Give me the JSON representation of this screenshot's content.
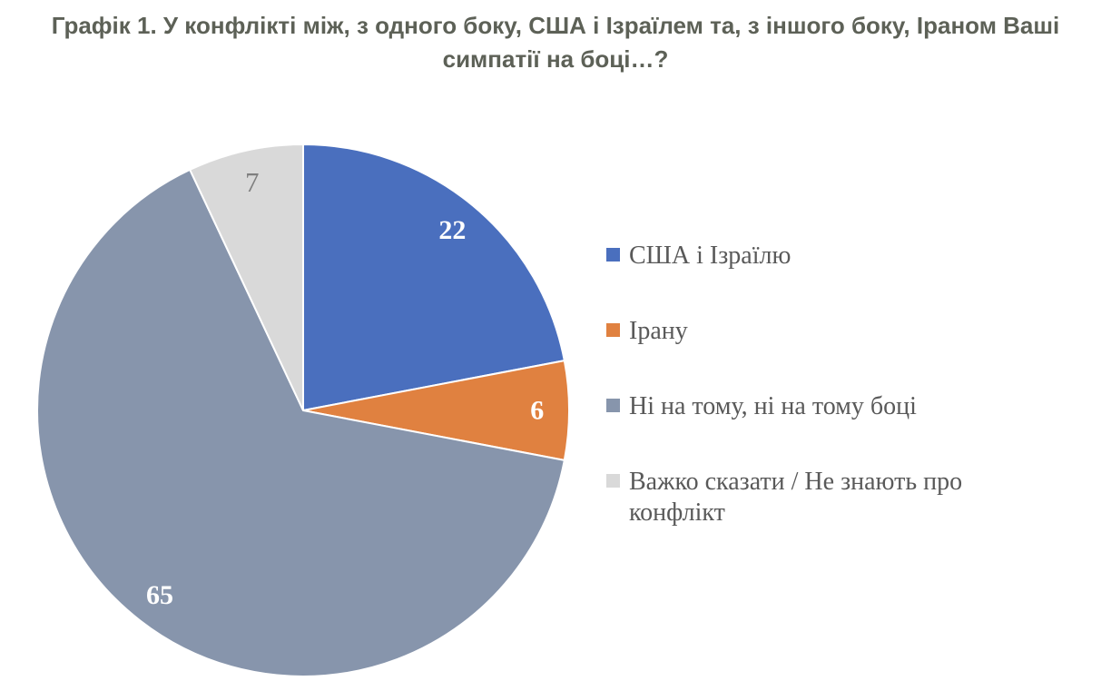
{
  "header": {
    "title": "Графік 1. У конфлікті між, з одного боку, США і Ізраїлем та, з іншого боку, Іраном Ваші симпатії на боці…?",
    "title_color": "#5d6157"
  },
  "chart_data": {
    "type": "pie",
    "title": "Графік 1. У конфлікті між, з одного боку, США і Ізраїлем та, з іншого боку, Іраном Ваші симпатії на боці…?",
    "units": "percent",
    "start_angle_deg": 0,
    "direction": "clockwise",
    "legend_position": "right",
    "background_color": "#ffffff",
    "slices": [
      {
        "label": "США і Ізраїлю",
        "value": 22,
        "color": "#4a6fbe",
        "value_label": {
          "text": "22",
          "color": "#ffffff",
          "bold": true
        }
      },
      {
        "label": "Ірану",
        "value": 6,
        "color": "#e08140",
        "value_label": {
          "text": "6",
          "color": "#ffffff",
          "bold": true
        }
      },
      {
        "label": "Ні на тому, ні на тому боці",
        "value": 65,
        "color": "#8795ac",
        "value_label": {
          "text": "65",
          "color": "#ffffff",
          "bold": true
        }
      },
      {
        "label": "Важко сказати / Не знають про конфлікт",
        "value": 7,
        "color": "#d9d9d9",
        "value_label": {
          "text": "7",
          "color": "#7f7f7f",
          "bold": false
        }
      }
    ]
  }
}
